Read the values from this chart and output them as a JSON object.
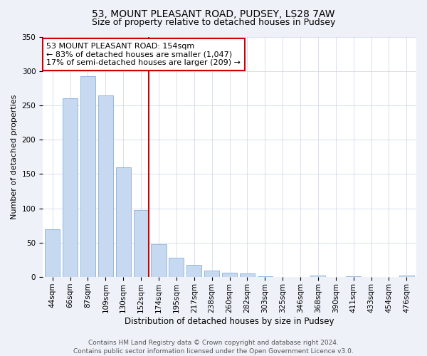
{
  "title": "53, MOUNT PLEASANT ROAD, PUDSEY, LS28 7AW",
  "subtitle": "Size of property relative to detached houses in Pudsey",
  "xlabel": "Distribution of detached houses by size in Pudsey",
  "ylabel": "Number of detached properties",
  "bar_labels": [
    "44sqm",
    "66sqm",
    "87sqm",
    "109sqm",
    "130sqm",
    "152sqm",
    "174sqm",
    "195sqm",
    "217sqm",
    "238sqm",
    "260sqm",
    "282sqm",
    "303sqm",
    "325sqm",
    "346sqm",
    "368sqm",
    "390sqm",
    "411sqm",
    "433sqm",
    "454sqm",
    "476sqm"
  ],
  "bar_values": [
    70,
    260,
    292,
    265,
    160,
    98,
    48,
    28,
    18,
    10,
    6,
    5,
    1,
    0,
    0,
    2,
    0,
    1,
    0,
    0,
    2
  ],
  "bar_color": "#c6d9f1",
  "bar_edge_color": "#8ab0d8",
  "vline_color": "#cc0000",
  "annotation_line1": "53 MOUNT PLEASANT ROAD: 154sqm",
  "annotation_line2": "← 83% of detached houses are smaller (1,047)",
  "annotation_line3": "17% of semi-detached houses are larger (209) →",
  "annotation_box_color": "#ffffff",
  "annotation_box_edge_color": "#cc0000",
  "ylim": [
    0,
    350
  ],
  "yticks": [
    0,
    50,
    100,
    150,
    200,
    250,
    300,
    350
  ],
  "footer_text": "Contains HM Land Registry data © Crown copyright and database right 2024.\nContains public sector information licensed under the Open Government Licence v3.0.",
  "background_color": "#eef2f8",
  "plot_background_color": "#ffffff",
  "title_fontsize": 10,
  "subtitle_fontsize": 9,
  "xlabel_fontsize": 8.5,
  "ylabel_fontsize": 8,
  "tick_fontsize": 7.5,
  "annotation_fontsize": 8,
  "footer_fontsize": 6.5
}
